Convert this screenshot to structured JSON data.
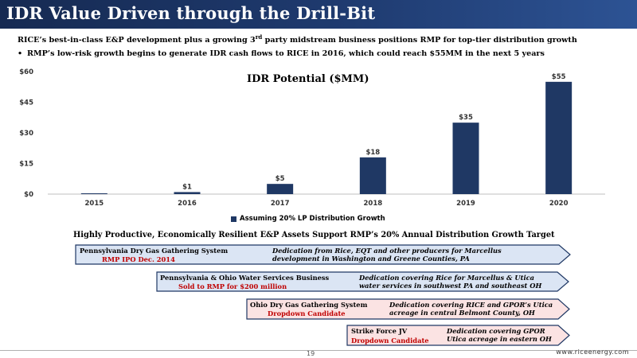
{
  "slide": {
    "title": "IDR Value Driven through the Drill-Bit",
    "intro_pre": "RICE’s best-in-class E&P development plus a growing 3",
    "intro_sup": "rd",
    "intro_post": " party midstream business positions RMP for top-tier distribution growth",
    "bullet": "RMP’s low-risk growth begins to generate IDR cash flows to RICE in 2016, which could reach $55MM in the next 5 years",
    "section_heading": "Highly Productive, Economically Resilient E&P Assets Support RMP’s 20% Annual Distribution Growth Target",
    "page_number": "19",
    "website": "www.riceenergy.com"
  },
  "colors": {
    "title_bar": "#1f3b70",
    "bar": "#1f3864",
    "status_red": "#c00000",
    "arrow_blue_fill": "#dbe5f4",
    "arrow_pink_fill": "#fbe3e3",
    "arrow_border": "#1f3864"
  },
  "chart_data": {
    "type": "bar",
    "title": "IDR Potential ($MM)",
    "categories": [
      "2015",
      "2016",
      "2017",
      "2018",
      "2019",
      "2020"
    ],
    "series": [
      {
        "name": "Assuming 20% LP Distribution Growth",
        "values": [
          0,
          1,
          5,
          18,
          35,
          55
        ]
      }
    ],
    "data_labels": [
      "",
      "$1",
      "$5",
      "$18",
      "$35",
      "$55"
    ],
    "y_ticks": [
      "$0",
      "$15",
      "$30",
      "$45",
      "$60"
    ],
    "y_tick_values": [
      0,
      15,
      30,
      45,
      60
    ],
    "ylim": [
      0,
      60
    ],
    "grid": false,
    "legend_position": "bottom"
  },
  "assets": [
    {
      "name": "Pennsylvania Dry Gas Gathering System",
      "status": "RMP IPO Dec. 2014",
      "desc1": "Dedication from Rice, EQT and other producers for Marcellus",
      "desc2": "development in Washington and Greene Counties, PA",
      "fill": "blue"
    },
    {
      "name": "Pennsylvania & Ohio Water Services Business",
      "status": "Sold to RMP for $200 million",
      "desc1": "Dedication covering Rice for Marcellus & Utica",
      "desc2": "water services in southwest PA and southeast OH",
      "fill": "blue"
    },
    {
      "name": "Ohio Dry Gas Gathering System",
      "status": "Dropdown Candidate",
      "desc1": "Dedication covering RICE and GPOR’s Utica",
      "desc2": "acreage in central Belmont County, OH",
      "fill": "pink"
    },
    {
      "name": "Strike Force JV",
      "status": "Dropdown Candidate",
      "desc1": "Dedication covering GPOR",
      "desc2": "Utica acreage in eastern OH",
      "fill": "pink"
    }
  ]
}
